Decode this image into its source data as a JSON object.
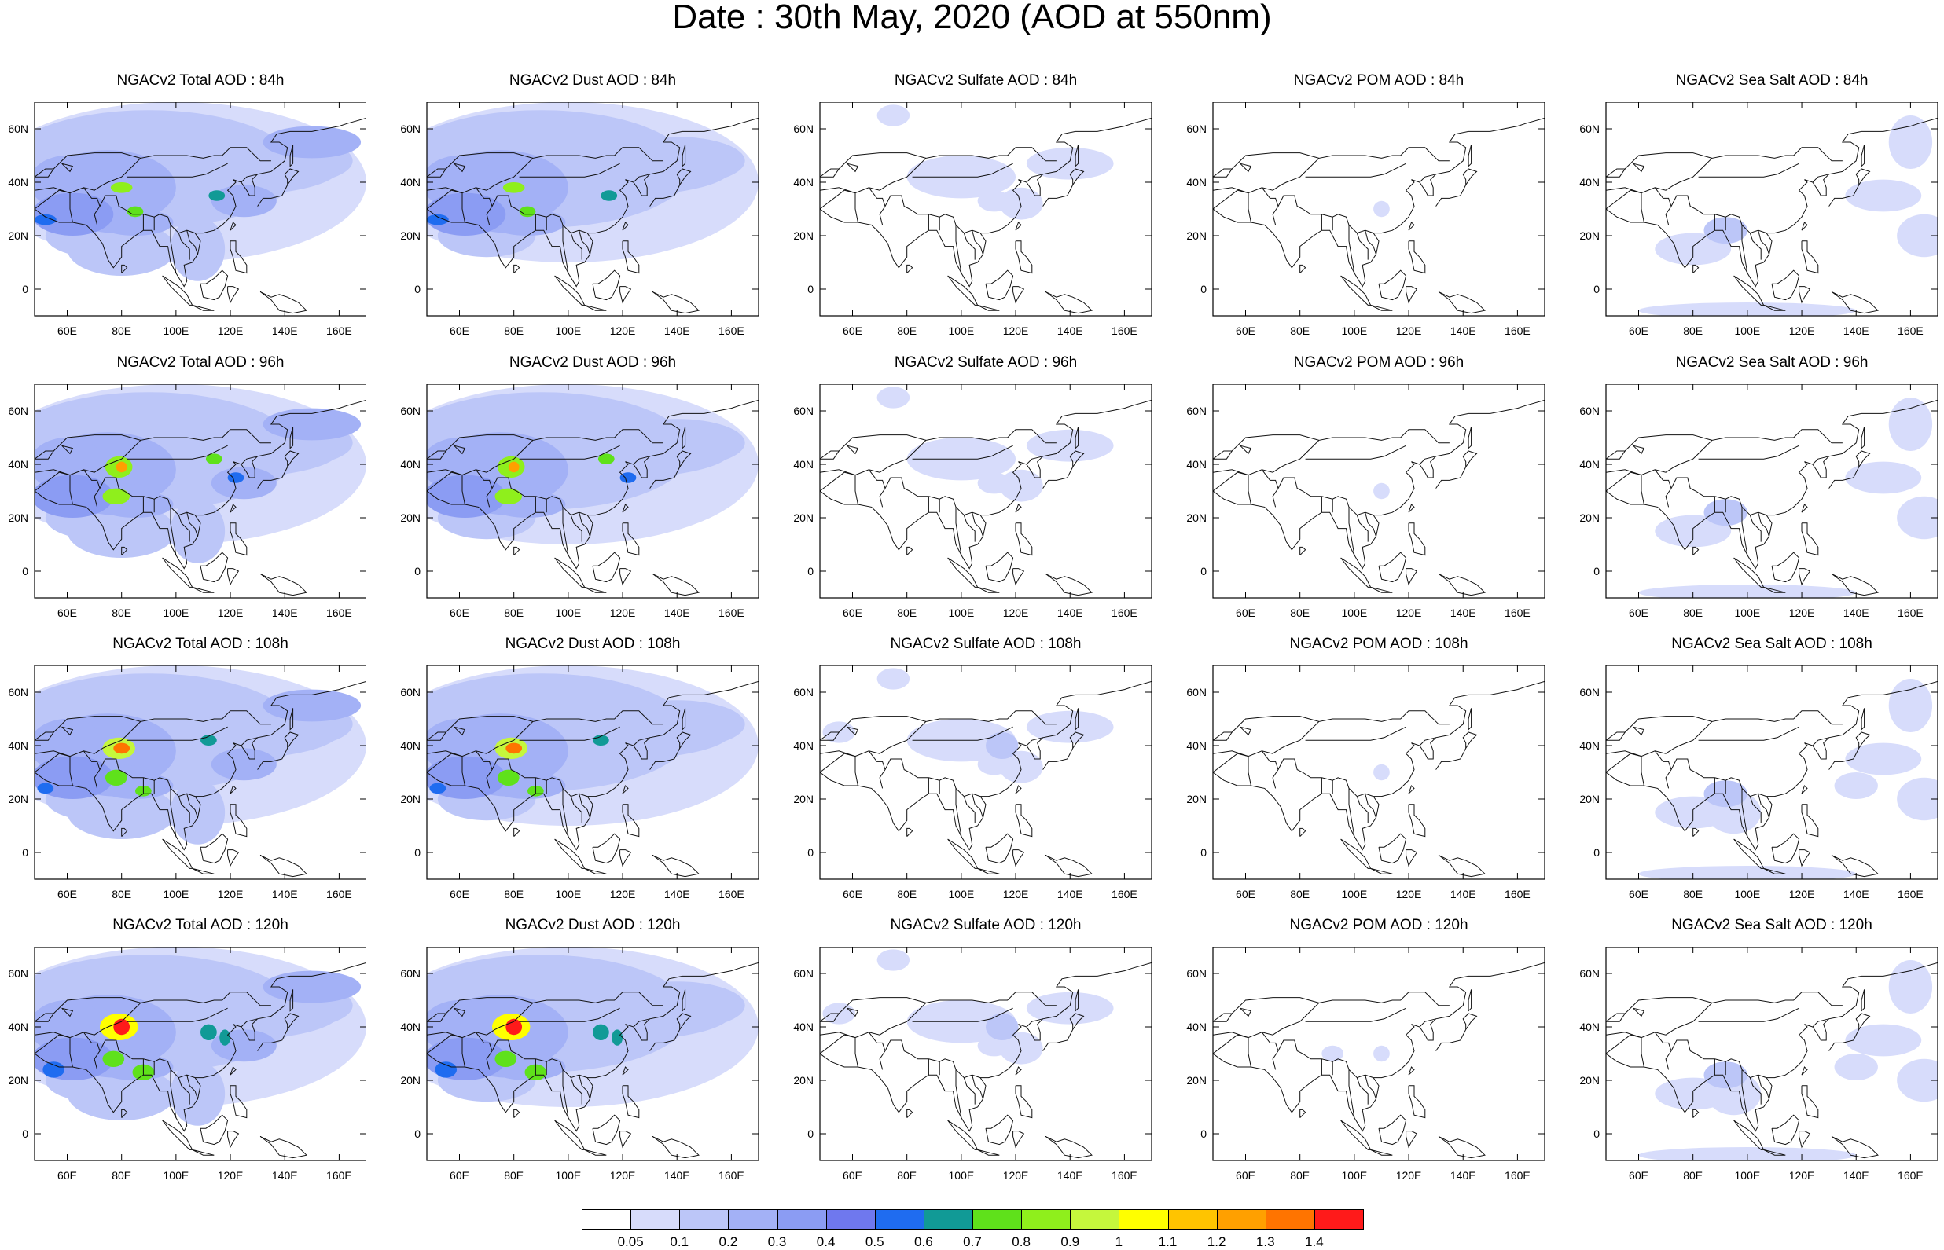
{
  "title": "Date : 30th May, 2020 (AOD at 550nm)",
  "chart_data": {
    "type": "heatmap",
    "description_grid": "5 columns x 4 rows of map panels over Asia",
    "x_ticks": [
      "60E",
      "80E",
      "100E",
      "120E",
      "140E",
      "160E"
    ],
    "y_ticks": [
      "60N",
      "40N",
      "20N",
      "0"
    ],
    "x_range_lon": [
      48,
      170
    ],
    "y_range_lat": [
      -10,
      70
    ],
    "panels": [
      [
        "NGACv2 Total AOD : 84h",
        "NGACv2 Dust AOD : 84h",
        "NGACv2 Sulfate AOD : 84h",
        "NGACv2 POM AOD : 84h",
        "NGACv2 Sea Salt AOD : 84h"
      ],
      [
        "NGACv2 Total AOD : 96h",
        "NGACv2 Dust AOD : 96h",
        "NGACv2 Sulfate AOD : 96h",
        "NGACv2 POM AOD : 96h",
        "NGACv2 Sea Salt AOD : 96h"
      ],
      [
        "NGACv2 Total AOD : 108h",
        "NGACv2 Dust AOD : 108h",
        "NGACv2 Sulfate AOD : 108h",
        "NGACv2 POM AOD : 108h",
        "NGACv2 Sea Salt AOD : 108h"
      ],
      [
        "NGACv2 Total AOD : 120h",
        "NGACv2 Dust AOD : 120h",
        "NGACv2 Sulfate AOD : 120h",
        "NGACv2 POM AOD : 120h",
        "NGACv2 Sea Salt  AOD : 120h"
      ]
    ],
    "colorbar": {
      "levels": [
        "0.05",
        "0.1",
        "0.2",
        "0.3",
        "0.4",
        "0.5",
        "0.6",
        "0.7",
        "0.8",
        "0.9",
        "1",
        "1.1",
        "1.2",
        "1.3",
        "1.4"
      ],
      "colors": [
        "#ffffff",
        "#d7dcfb",
        "#bcc6f8",
        "#a3b1f6",
        "#8b9cf3",
        "#6f78ee",
        "#1f6cf0",
        "#119a96",
        "#5fe11b",
        "#8fef1c",
        "#c5f73c",
        "#ffff00",
        "#ffc400",
        "#ffa000",
        "#ff7400",
        "#ff1a1a"
      ]
    }
  }
}
